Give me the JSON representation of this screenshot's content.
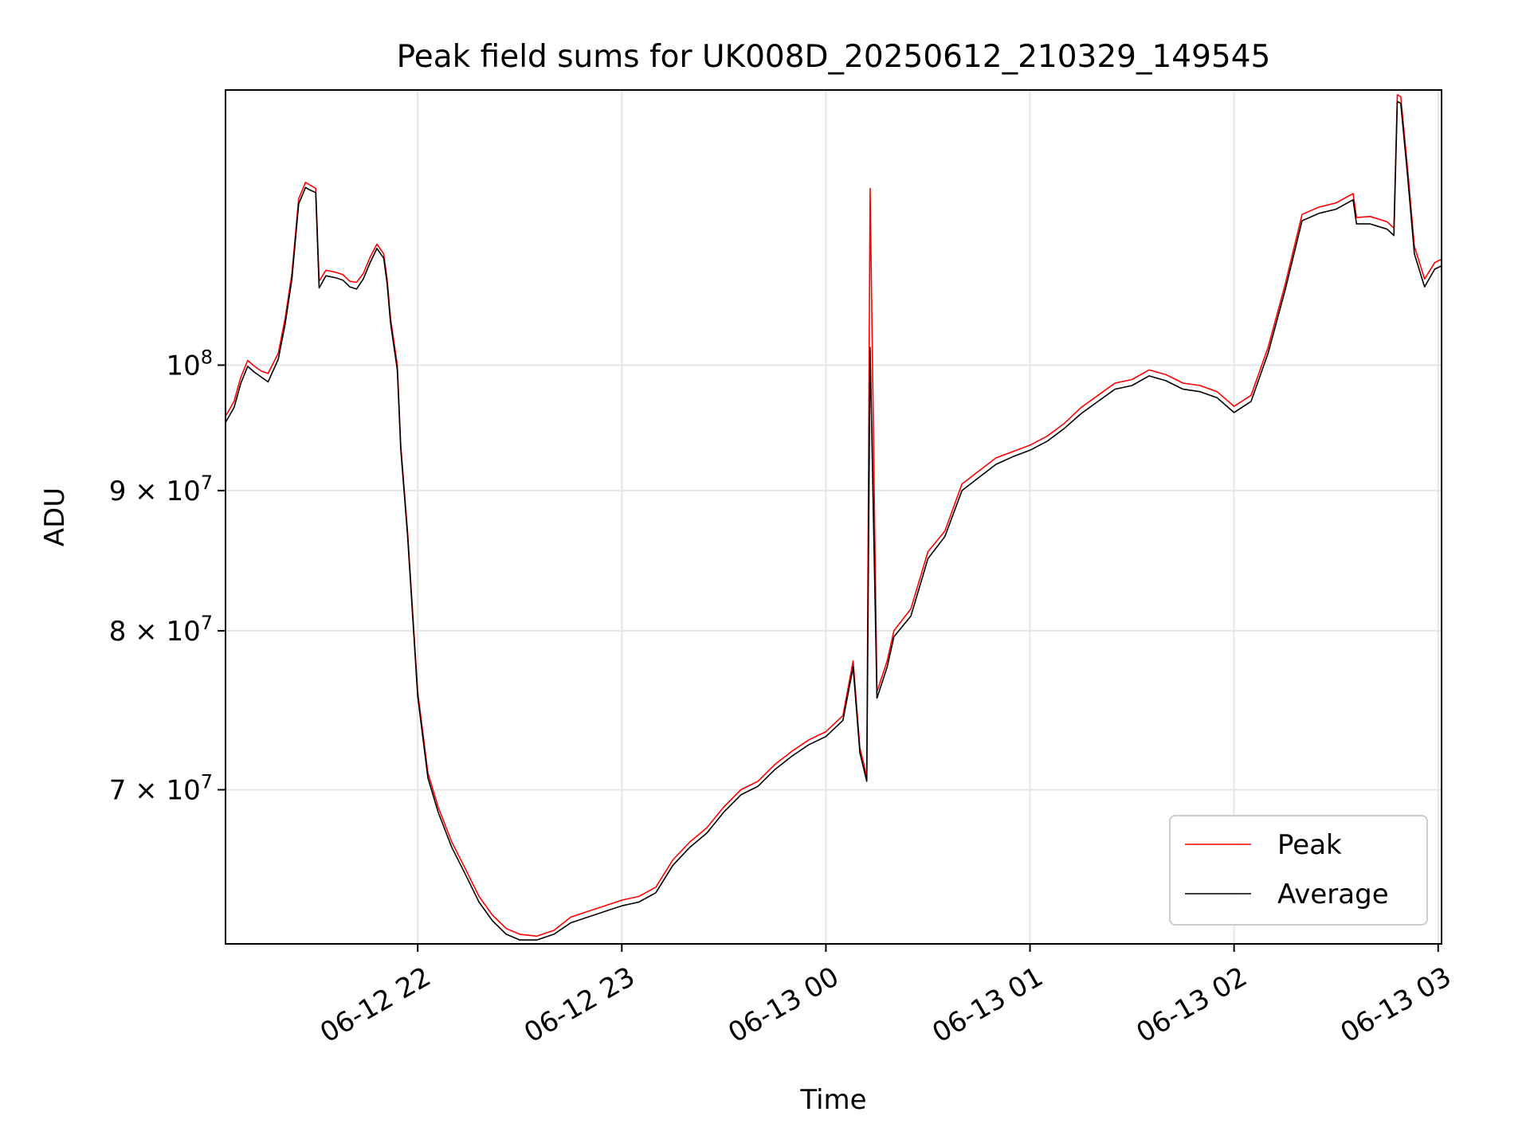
{
  "chart_data": {
    "type": "line",
    "title": "Peak field sums for UK008D_20250612_210329_149545",
    "xlabel": "Time",
    "ylabel": "ADU",
    "x_axis": {
      "kind": "datetime",
      "range": [
        "2025-06-12T21:03:29",
        "2025-06-13T03:01:00"
      ],
      "ticks": [
        {
          "t": "2025-06-12T22:00",
          "label": "06-12 22"
        },
        {
          "t": "2025-06-12T23:00",
          "label": "06-12 23"
        },
        {
          "t": "2025-06-13T00:00",
          "label": "06-13 00"
        },
        {
          "t": "2025-06-13T01:00",
          "label": "06-13 01"
        },
        {
          "t": "2025-06-13T02:00",
          "label": "06-13 02"
        },
        {
          "t": "2025-06-13T03:00",
          "label": "06-13 03"
        }
      ]
    },
    "y_axis": {
      "scale": "log",
      "range": [
        61500000,
        126000000
      ],
      "ticks": [
        {
          "v": 70000000,
          "mantissa": "7",
          "exp": "7"
        },
        {
          "v": 80000000,
          "mantissa": "8",
          "exp": "7"
        },
        {
          "v": 90000000,
          "mantissa": "9",
          "exp": "7"
        },
        {
          "v": 100000000,
          "mantissa": "",
          "exp": "8"
        }
      ]
    },
    "grid": true,
    "legend_position": "lower-right",
    "series": [
      {
        "name": "Peak",
        "color": "#ff0000",
        "points": [
          [
            "2025-06-12T21:03:29",
            95800000
          ],
          [
            "2025-06-12T21:06",
            97000000
          ],
          [
            "2025-06-12T21:08",
            99000000
          ],
          [
            "2025-06-12T21:10",
            100400000
          ],
          [
            "2025-06-12T21:12",
            99900000
          ],
          [
            "2025-06-12T21:14",
            99500000
          ],
          [
            "2025-06-12T21:16",
            99300000
          ],
          [
            "2025-06-12T21:19",
            101000000
          ],
          [
            "2025-06-12T21:21",
            104000000
          ],
          [
            "2025-06-12T21:23",
            108000000
          ],
          [
            "2025-06-12T21:25",
            115000000
          ],
          [
            "2025-06-12T21:27",
            116600000
          ],
          [
            "2025-06-12T21:28",
            116400000
          ],
          [
            "2025-06-12T21:30",
            116000000
          ],
          [
            "2025-06-12T21:31",
            107300000
          ],
          [
            "2025-06-12T21:33",
            108300000
          ],
          [
            "2025-06-12T21:36",
            108100000
          ],
          [
            "2025-06-12T21:38",
            107900000
          ],
          [
            "2025-06-12T21:40",
            107300000
          ],
          [
            "2025-06-12T21:42",
            107200000
          ],
          [
            "2025-06-12T21:44",
            108000000
          ],
          [
            "2025-06-12T21:46",
            109500000
          ],
          [
            "2025-06-12T21:48",
            110700000
          ],
          [
            "2025-06-12T21:50",
            109800000
          ],
          [
            "2025-06-12T21:51",
            107500000
          ],
          [
            "2025-06-12T21:52",
            104000000
          ],
          [
            "2025-06-12T21:54",
            100000000
          ],
          [
            "2025-06-12T21:55",
            93500000
          ],
          [
            "2025-06-12T21:57",
            87000000
          ],
          [
            "2025-06-12T22:00",
            76000000
          ],
          [
            "2025-06-12T22:03",
            71000000
          ],
          [
            "2025-06-12T22:06",
            69000000
          ],
          [
            "2025-06-12T22:10",
            67000000
          ],
          [
            "2025-06-12T22:14",
            65500000
          ],
          [
            "2025-06-12T22:18",
            64000000
          ],
          [
            "2025-06-12T22:22",
            63000000
          ],
          [
            "2025-06-12T22:26",
            62300000
          ],
          [
            "2025-06-12T22:30",
            62000000
          ],
          [
            "2025-06-12T22:35",
            61900000
          ],
          [
            "2025-06-12T22:40",
            62200000
          ],
          [
            "2025-06-12T22:45",
            62900000
          ],
          [
            "2025-06-12T22:50",
            63200000
          ],
          [
            "2025-06-12T22:55",
            63500000
          ],
          [
            "2025-06-12T23:00",
            63800000
          ],
          [
            "2025-06-12T23:05",
            64000000
          ],
          [
            "2025-06-12T23:10",
            64500000
          ],
          [
            "2025-06-12T23:15",
            66000000
          ],
          [
            "2025-06-12T23:20",
            67000000
          ],
          [
            "2025-06-12T23:25",
            67800000
          ],
          [
            "2025-06-12T23:30",
            69000000
          ],
          [
            "2025-06-12T23:35",
            70000000
          ],
          [
            "2025-06-12T23:40",
            70500000
          ],
          [
            "2025-06-12T23:45",
            71500000
          ],
          [
            "2025-06-12T23:50",
            72300000
          ],
          [
            "2025-06-12T23:55",
            73000000
          ],
          [
            "2025-06-13T00:00",
            73500000
          ],
          [
            "2025-06-13T00:05",
            74500000
          ],
          [
            "2025-06-13T00:08",
            78000000
          ],
          [
            "2025-06-13T00:10",
            72500000
          ],
          [
            "2025-06-13T00:12",
            70800000
          ],
          [
            "2025-06-13T00:13",
            116000000
          ],
          [
            "2025-06-13T00:15",
            76000000
          ],
          [
            "2025-06-13T00:18",
            78000000
          ],
          [
            "2025-06-13T00:20",
            80000000
          ],
          [
            "2025-06-13T00:25",
            81500000
          ],
          [
            "2025-06-13T00:30",
            85500000
          ],
          [
            "2025-06-13T00:35",
            87000000
          ],
          [
            "2025-06-13T00:40",
            90500000
          ],
          [
            "2025-06-13T00:45",
            91500000
          ],
          [
            "2025-06-13T00:50",
            92500000
          ],
          [
            "2025-06-13T00:55",
            93000000
          ],
          [
            "2025-06-13T01:00",
            93500000
          ],
          [
            "2025-06-13T01:05",
            94200000
          ],
          [
            "2025-06-13T01:10",
            95200000
          ],
          [
            "2025-06-13T01:15",
            96500000
          ],
          [
            "2025-06-13T01:20",
            97500000
          ],
          [
            "2025-06-13T01:25",
            98500000
          ],
          [
            "2025-06-13T01:30",
            98800000
          ],
          [
            "2025-06-13T01:35",
            99600000
          ],
          [
            "2025-06-13T01:40",
            99200000
          ],
          [
            "2025-06-13T01:45",
            98500000
          ],
          [
            "2025-06-13T01:50",
            98300000
          ],
          [
            "2025-06-13T01:55",
            97800000
          ],
          [
            "2025-06-13T02:00",
            96600000
          ],
          [
            "2025-06-13T02:05",
            97500000
          ],
          [
            "2025-06-13T02:10",
            101500000
          ],
          [
            "2025-06-13T02:15",
            107000000
          ],
          [
            "2025-06-13T02:20",
            113500000
          ],
          [
            "2025-06-13T02:25",
            114200000
          ],
          [
            "2025-06-13T02:30",
            114600000
          ],
          [
            "2025-06-13T02:35",
            115500000
          ],
          [
            "2025-06-13T02:36",
            113200000
          ],
          [
            "2025-06-13T02:40",
            113300000
          ],
          [
            "2025-06-13T02:45",
            112800000
          ],
          [
            "2025-06-13T02:47",
            112200000
          ],
          [
            "2025-06-13T02:48",
            125500000
          ],
          [
            "2025-06-13T02:49",
            125300000
          ],
          [
            "2025-06-13T02:51",
            118000000
          ],
          [
            "2025-06-13T02:53",
            110500000
          ],
          [
            "2025-06-13T02:56",
            107500000
          ],
          [
            "2025-06-13T02:59",
            109000000
          ],
          [
            "2025-06-13T03:01",
            109300000
          ]
        ]
      },
      {
        "name": "Average",
        "color": "#000000",
        "points": [
          [
            "2025-06-12T21:03:29",
            95300000
          ],
          [
            "2025-06-12T21:06",
            96500000
          ],
          [
            "2025-06-12T21:08",
            98500000
          ],
          [
            "2025-06-12T21:10",
            99900000
          ],
          [
            "2025-06-12T21:12",
            99400000
          ],
          [
            "2025-06-12T21:14",
            99000000
          ],
          [
            "2025-06-12T21:16",
            98600000
          ],
          [
            "2025-06-12T21:19",
            100500000
          ],
          [
            "2025-06-12T21:21",
            103500000
          ],
          [
            "2025-06-12T21:23",
            107500000
          ],
          [
            "2025-06-12T21:25",
            114500000
          ],
          [
            "2025-06-12T21:27",
            116100000
          ],
          [
            "2025-06-12T21:28",
            115900000
          ],
          [
            "2025-06-12T21:30",
            115600000
          ],
          [
            "2025-06-12T21:31",
            106700000
          ],
          [
            "2025-06-12T21:33",
            107800000
          ],
          [
            "2025-06-12T21:36",
            107600000
          ],
          [
            "2025-06-12T21:38",
            107400000
          ],
          [
            "2025-06-12T21:40",
            106800000
          ],
          [
            "2025-06-12T21:42",
            106600000
          ],
          [
            "2025-06-12T21:44",
            107500000
          ],
          [
            "2025-06-12T21:46",
            109000000
          ],
          [
            "2025-06-12T21:48",
            110300000
          ],
          [
            "2025-06-12T21:50",
            109400000
          ],
          [
            "2025-06-12T21:51",
            107100000
          ],
          [
            "2025-06-12T21:52",
            103600000
          ],
          [
            "2025-06-12T21:54",
            99600000
          ],
          [
            "2025-06-12T21:55",
            93200000
          ],
          [
            "2025-06-12T21:57",
            86700000
          ],
          [
            "2025-06-12T22:00",
            75700000
          ],
          [
            "2025-06-12T22:03",
            70700000
          ],
          [
            "2025-06-12T22:06",
            68700000
          ],
          [
            "2025-06-12T22:10",
            66700000
          ],
          [
            "2025-06-12T22:14",
            65200000
          ],
          [
            "2025-06-12T22:18",
            63700000
          ],
          [
            "2025-06-12T22:22",
            62700000
          ],
          [
            "2025-06-12T22:26",
            62000000
          ],
          [
            "2025-06-12T22:30",
            61700000
          ],
          [
            "2025-06-12T22:35",
            61700000
          ],
          [
            "2025-06-12T22:40",
            62000000
          ],
          [
            "2025-06-12T22:45",
            62600000
          ],
          [
            "2025-06-12T22:50",
            62900000
          ],
          [
            "2025-06-12T22:55",
            63200000
          ],
          [
            "2025-06-12T23:00",
            63500000
          ],
          [
            "2025-06-12T23:05",
            63700000
          ],
          [
            "2025-06-12T23:10",
            64200000
          ],
          [
            "2025-06-12T23:15",
            65700000
          ],
          [
            "2025-06-12T23:20",
            66700000
          ],
          [
            "2025-06-12T23:25",
            67500000
          ],
          [
            "2025-06-12T23:30",
            68700000
          ],
          [
            "2025-06-12T23:35",
            69700000
          ],
          [
            "2025-06-12T23:40",
            70200000
          ],
          [
            "2025-06-12T23:45",
            71200000
          ],
          [
            "2025-06-12T23:50",
            72000000
          ],
          [
            "2025-06-12T23:55",
            72700000
          ],
          [
            "2025-06-13T00:00",
            73200000
          ],
          [
            "2025-06-13T00:05",
            74200000
          ],
          [
            "2025-06-13T00:08",
            77600000
          ],
          [
            "2025-06-13T00:10",
            72200000
          ],
          [
            "2025-06-13T00:12",
            70500000
          ],
          [
            "2025-06-13T00:13",
            101500000
          ],
          [
            "2025-06-13T00:15",
            75600000
          ],
          [
            "2025-06-13T00:18",
            77600000
          ],
          [
            "2025-06-13T00:20",
            79600000
          ],
          [
            "2025-06-13T00:25",
            81000000
          ],
          [
            "2025-06-13T00:30",
            85000000
          ],
          [
            "2025-06-13T00:35",
            86600000
          ],
          [
            "2025-06-13T00:40",
            90000000
          ],
          [
            "2025-06-13T00:45",
            91000000
          ],
          [
            "2025-06-13T00:50",
            92000000
          ],
          [
            "2025-06-13T00:55",
            92600000
          ],
          [
            "2025-06-13T01:00",
            93100000
          ],
          [
            "2025-06-13T01:05",
            93800000
          ],
          [
            "2025-06-13T01:10",
            94800000
          ],
          [
            "2025-06-13T01:15",
            96000000
          ],
          [
            "2025-06-13T01:20",
            97000000
          ],
          [
            "2025-06-13T01:25",
            98000000
          ],
          [
            "2025-06-13T01:30",
            98300000
          ],
          [
            "2025-06-13T01:35",
            99100000
          ],
          [
            "2025-06-13T01:40",
            98700000
          ],
          [
            "2025-06-13T01:45",
            98000000
          ],
          [
            "2025-06-13T01:50",
            97800000
          ],
          [
            "2025-06-13T01:55",
            97300000
          ],
          [
            "2025-06-13T02:00",
            96100000
          ],
          [
            "2025-06-13T02:05",
            97000000
          ],
          [
            "2025-06-13T02:10",
            101000000
          ],
          [
            "2025-06-13T02:15",
            106500000
          ],
          [
            "2025-06-13T02:20",
            112900000
          ],
          [
            "2025-06-13T02:25",
            113600000
          ],
          [
            "2025-06-13T02:30",
            114000000
          ],
          [
            "2025-06-13T02:35",
            114900000
          ],
          [
            "2025-06-13T02:36",
            112600000
          ],
          [
            "2025-06-13T02:40",
            112600000
          ],
          [
            "2025-06-13T02:45",
            112100000
          ],
          [
            "2025-06-13T02:47",
            111500000
          ],
          [
            "2025-06-13T02:48",
            124800000
          ],
          [
            "2025-06-13T02:49",
            124600000
          ],
          [
            "2025-06-13T02:51",
            117300000
          ],
          [
            "2025-06-13T02:53",
            109800000
          ],
          [
            "2025-06-13T02:56",
            106800000
          ],
          [
            "2025-06-13T02:59",
            108400000
          ],
          [
            "2025-06-13T03:01",
            108700000
          ]
        ]
      }
    ]
  }
}
